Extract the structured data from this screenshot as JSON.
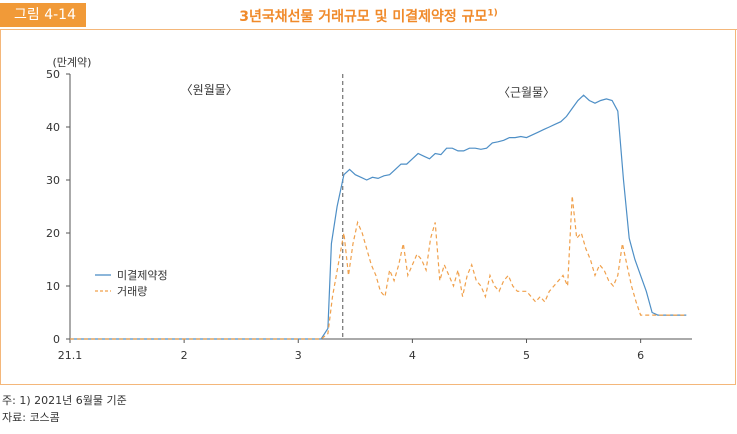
{
  "header": {
    "badge": "그림 4-14",
    "title": "3년국채선물 거래규모 및 미결제약정 규모",
    "title_sup": "1)"
  },
  "notes": {
    "note1": "주: 1) 2021년 6월물 기준",
    "note2": "자료: 코스콤"
  },
  "colors": {
    "accent": "#f19a38",
    "oi_line": "#4e8fc6",
    "vol_line": "#f0a04b"
  },
  "chart_data": {
    "type": "line",
    "title": "",
    "ylabel": "(만계약)",
    "xlabel": "",
    "ylim": [
      0,
      50
    ],
    "xlim": [
      0,
      5.45
    ],
    "x_ticks": [
      {
        "value": 0,
        "label": "21.1"
      },
      {
        "value": 1,
        "label": "2"
      },
      {
        "value": 2,
        "label": "3"
      },
      {
        "value": 3,
        "label": "4"
      },
      {
        "value": 4,
        "label": "5"
      },
      {
        "value": 5,
        "label": "6"
      }
    ],
    "y_ticks": [
      0,
      10,
      20,
      30,
      40,
      50
    ],
    "annotations": [
      {
        "text": "〈원월물〉",
        "x": 1.22,
        "y": 47
      },
      {
        "text": "〈근월물〉",
        "x": 4.0,
        "y": 46.5
      }
    ],
    "divider_x": 2.39,
    "legend": {
      "placement": "left-center",
      "items": [
        "미결제약정",
        "거래량"
      ]
    },
    "series": [
      {
        "name": "미결제약정",
        "color": "#4e8fc6",
        "dash": "",
        "x": [
          0,
          2.2,
          2.26,
          2.29,
          2.34,
          2.4,
          2.45,
          2.5,
          2.55,
          2.6,
          2.65,
          2.7,
          2.75,
          2.8,
          2.85,
          2.9,
          2.95,
          3.0,
          3.05,
          3.1,
          3.15,
          3.2,
          3.25,
          3.3,
          3.35,
          3.4,
          3.45,
          3.5,
          3.55,
          3.6,
          3.65,
          3.7,
          3.75,
          3.8,
          3.85,
          3.9,
          3.95,
          4.0,
          4.05,
          4.1,
          4.15,
          4.2,
          4.25,
          4.3,
          4.35,
          4.4,
          4.45,
          4.5,
          4.55,
          4.6,
          4.65,
          4.7,
          4.75,
          4.8,
          4.85,
          4.9,
          4.95,
          5.0,
          5.05,
          5.1,
          5.15,
          5.2,
          5.25,
          5.3,
          5.35,
          5.4
        ],
        "values": [
          0,
          0,
          2,
          18,
          25,
          31,
          32,
          31,
          30.5,
          30,
          30.5,
          30.3,
          30.8,
          31,
          32,
          33,
          33,
          34,
          35,
          34.5,
          34,
          35,
          34.8,
          36,
          36,
          35.5,
          35.5,
          36,
          36,
          35.8,
          36,
          37,
          37.2,
          37.5,
          38,
          38,
          38.2,
          38,
          38.5,
          39,
          39.5,
          40,
          40.5,
          41,
          42,
          43.5,
          45,
          46,
          45,
          44.5,
          45,
          45.3,
          45,
          43,
          30,
          19,
          15,
          12,
          9,
          5,
          4.5,
          4.5,
          4.5,
          4.5,
          4.5,
          4.5
        ]
      },
      {
        "name": "거래량",
        "color": "#f0a04b",
        "dash": "4,3",
        "x": [
          0,
          2.2,
          2.26,
          2.3,
          2.35,
          2.4,
          2.44,
          2.48,
          2.52,
          2.56,
          2.6,
          2.64,
          2.68,
          2.72,
          2.76,
          2.8,
          2.84,
          2.88,
          2.92,
          2.96,
          3.0,
          3.04,
          3.08,
          3.12,
          3.16,
          3.2,
          3.24,
          3.28,
          3.32,
          3.36,
          3.4,
          3.44,
          3.48,
          3.52,
          3.56,
          3.6,
          3.64,
          3.68,
          3.72,
          3.76,
          3.8,
          3.84,
          3.88,
          3.92,
          3.96,
          4.0,
          4.04,
          4.08,
          4.12,
          4.16,
          4.2,
          4.24,
          4.28,
          4.32,
          4.36,
          4.4,
          4.44,
          4.48,
          4.52,
          4.56,
          4.6,
          4.64,
          4.68,
          4.72,
          4.76,
          4.8,
          4.84,
          4.88,
          4.92,
          4.96,
          5.0,
          5.04,
          5.08,
          5.12,
          5.16,
          5.2,
          5.24,
          5.28,
          5.32,
          5.36,
          5.4
        ],
        "values": [
          0,
          0,
          1,
          8,
          14,
          20,
          12,
          18,
          22,
          20,
          17,
          14,
          12,
          9,
          8,
          13,
          11,
          14,
          18,
          12,
          14,
          16,
          15,
          13,
          19,
          22,
          11,
          14,
          12,
          10,
          13,
          8,
          12,
          14,
          11,
          10,
          8,
          12,
          10,
          9,
          11,
          12,
          10,
          9,
          9,
          9,
          8,
          7,
          8,
          7,
          9,
          10,
          11,
          12,
          10,
          27,
          19,
          20,
          17,
          15,
          12,
          14,
          13,
          11,
          10,
          12,
          18,
          14,
          10,
          7,
          4.5,
          4.5,
          4.5,
          4.5,
          4.5,
          4.5,
          4.5,
          4.5,
          4.5,
          4.5,
          4.5
        ]
      }
    ]
  }
}
